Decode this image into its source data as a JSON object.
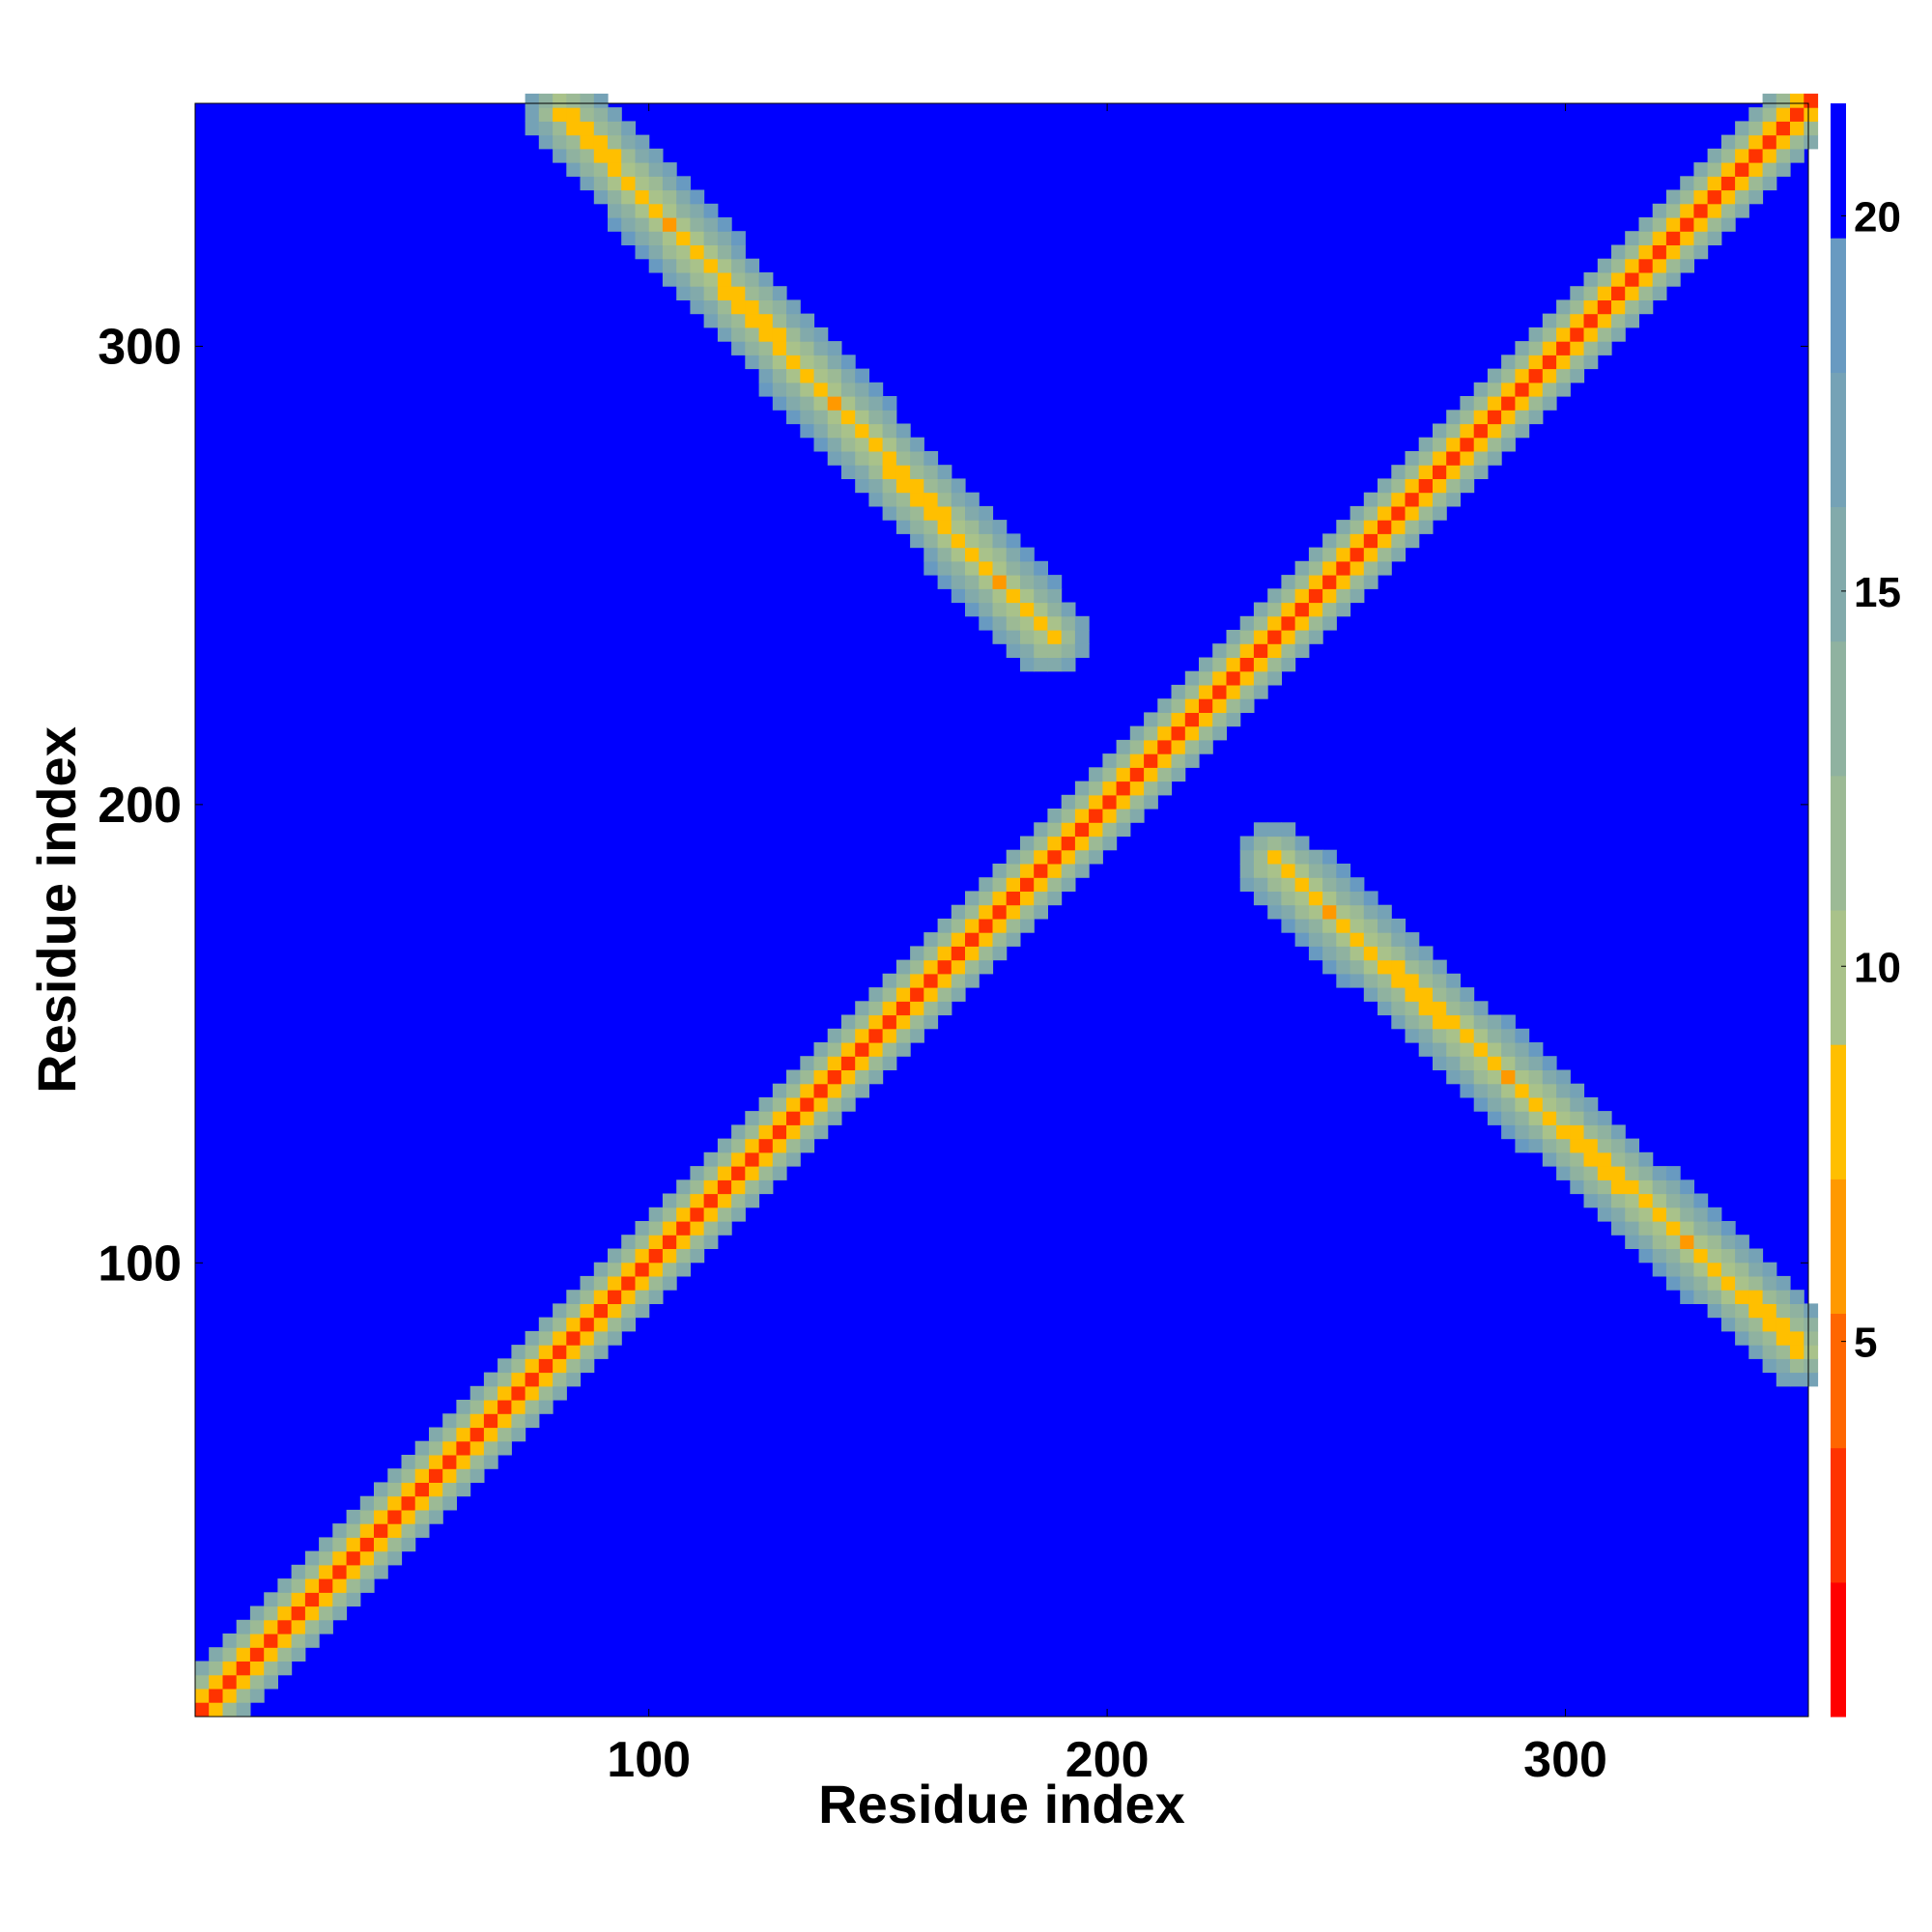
{
  "chart_data": {
    "type": "heatmap",
    "title": "",
    "xlabel": "Residue index",
    "ylabel": "Residue index",
    "xlim": [
      1,
      353
    ],
    "ylim": [
      1,
      353
    ],
    "xticks": [
      100,
      200,
      300
    ],
    "yticks": [
      100,
      200,
      300
    ],
    "colorbar": {
      "ticks": [
        5,
        10,
        15,
        20
      ],
      "range": [
        0,
        21.5
      ],
      "colors": [
        "#ff0000",
        "#ff3300",
        "#ff6600",
        "#ff9900",
        "#ffbf00",
        "#a9c28a",
        "#9cba95",
        "#8fb2a0",
        "#82aaab",
        "#75a2b6",
        "#689ac1",
        "#0000ff"
      ]
    },
    "features": [
      {
        "name": "main-diagonal",
        "from": [
          1,
          1
        ],
        "to": [
          353,
          353
        ],
        "core_value": 3,
        "band_width": 8
      },
      {
        "name": "antiparallel-sheet-upper",
        "from": [
          80,
          350
        ],
        "to": [
          186,
          235
        ],
        "core_value": 7,
        "band_width": 9
      },
      {
        "name": "antiparallel-sheet-lower",
        "from": [
          235,
          186
        ],
        "to": [
          350,
          80
        ],
        "core_value": 7,
        "band_width": 9
      }
    ],
    "background_value": 21
  }
}
